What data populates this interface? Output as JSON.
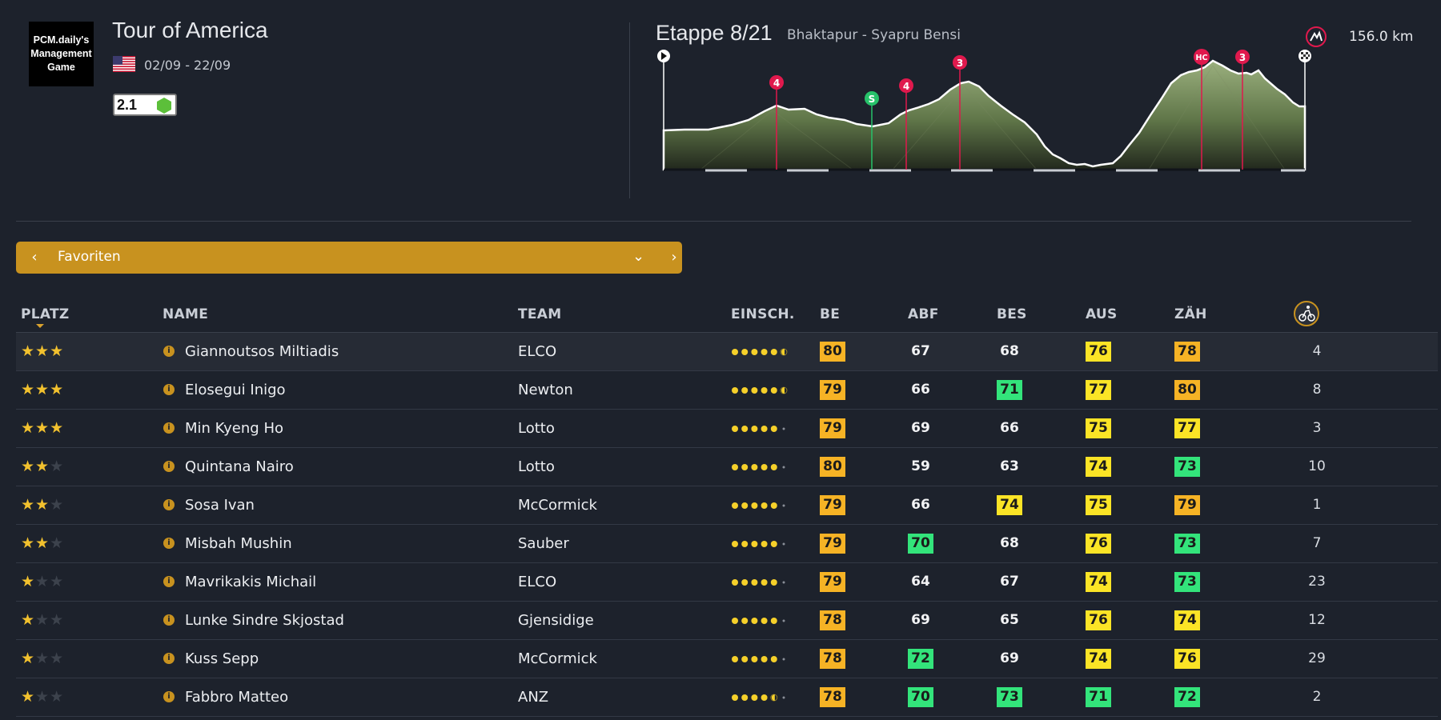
{
  "logo": {
    "lines": [
      "PCM.daily's",
      "Management",
      "Game"
    ]
  },
  "race": {
    "title": "Tour of America",
    "dates": "02/09 - 22/09",
    "category": "2.1",
    "category_color": "#5cbf3a",
    "flag": "us-flag-icon"
  },
  "stage": {
    "title": "Etappe 8/21",
    "route": "Bhaktapur - Syapru Bensi",
    "distance": "156.0 km",
    "markers": [
      {
        "label": "4",
        "kind": "climb",
        "color": "#e0194d"
      },
      {
        "label": "S",
        "kind": "sprint",
        "color": "#27c26a"
      },
      {
        "label": "4",
        "kind": "climb",
        "color": "#e0194d"
      },
      {
        "label": "3",
        "kind": "climb",
        "color": "#e0194d"
      },
      {
        "label": "HC",
        "kind": "climb",
        "color": "#e0194d"
      },
      {
        "label": "3",
        "kind": "climb",
        "color": "#e0194d"
      }
    ]
  },
  "selector": {
    "label": "Favoriten"
  },
  "columns": {
    "platz": "PLATZ",
    "name": "NAME",
    "team": "TEAM",
    "einsch": "EINSCH.",
    "be": "BE",
    "abf": "ABF",
    "bes": "BES",
    "aus": "AUS",
    "zah": "ZÄH"
  },
  "colors": {
    "orange": "#f6b325",
    "yellow": "#fbe426",
    "green": "#33e47b",
    "accent": "#c8921f"
  },
  "riders": [
    {
      "stars": 3,
      "name": "Giannoutsos Miltiadis",
      "team": "ELCO",
      "form": "●●●●●◖",
      "be": "80",
      "be_c": "orange",
      "abf": "67",
      "abf_c": "none",
      "bes": "68",
      "bes_c": "none",
      "aus": "76",
      "aus_c": "yellow",
      "zah": "78",
      "zah_c": "orange",
      "num": "4"
    },
    {
      "stars": 3,
      "name": "Elosegui Inigo",
      "team": "Newton",
      "form": "●●●●●◖",
      "be": "79",
      "be_c": "orange",
      "abf": "66",
      "abf_c": "none",
      "bes": "71",
      "bes_c": "green",
      "aus": "77",
      "aus_c": "yellow",
      "zah": "80",
      "zah_c": "orange",
      "num": "8"
    },
    {
      "stars": 3,
      "name": "Min Kyeng Ho",
      "team": "Lotto",
      "form": "●●●●●·",
      "be": "79",
      "be_c": "orange",
      "abf": "69",
      "abf_c": "none",
      "bes": "66",
      "bes_c": "none",
      "aus": "75",
      "aus_c": "yellow",
      "zah": "77",
      "zah_c": "yellow",
      "num": "3"
    },
    {
      "stars": 2,
      "name": "Quintana Nairo",
      "team": "Lotto",
      "form": "●●●●●·",
      "be": "80",
      "be_c": "orange",
      "abf": "59",
      "abf_c": "none",
      "bes": "63",
      "bes_c": "none",
      "aus": "74",
      "aus_c": "yellow",
      "zah": "73",
      "zah_c": "green",
      "num": "10"
    },
    {
      "stars": 2,
      "name": "Sosa Ivan",
      "team": "McCormick",
      "form": "●●●●●·",
      "be": "79",
      "be_c": "orange",
      "abf": "66",
      "abf_c": "none",
      "bes": "74",
      "bes_c": "yellow",
      "aus": "75",
      "aus_c": "yellow",
      "zah": "79",
      "zah_c": "orange",
      "num": "1"
    },
    {
      "stars": 2,
      "name": "Misbah Mushin",
      "team": "Sauber",
      "form": "●●●●●·",
      "be": "79",
      "be_c": "orange",
      "abf": "70",
      "abf_c": "green",
      "bes": "68",
      "bes_c": "none",
      "aus": "76",
      "aus_c": "yellow",
      "zah": "73",
      "zah_c": "green",
      "num": "7"
    },
    {
      "stars": 1,
      "name": "Mavrikakis Michail",
      "team": "ELCO",
      "form": "●●●●●·",
      "be": "79",
      "be_c": "orange",
      "abf": "64",
      "abf_c": "none",
      "bes": "67",
      "bes_c": "none",
      "aus": "74",
      "aus_c": "yellow",
      "zah": "73",
      "zah_c": "green",
      "num": "23"
    },
    {
      "stars": 1,
      "name": "Lunke Sindre Skjostad",
      "team": "Gjensidige",
      "form": "●●●●●·",
      "be": "78",
      "be_c": "orange",
      "abf": "69",
      "abf_c": "none",
      "bes": "65",
      "bes_c": "none",
      "aus": "76",
      "aus_c": "yellow",
      "zah": "74",
      "zah_c": "yellow",
      "num": "12"
    },
    {
      "stars": 1,
      "name": "Kuss Sepp",
      "team": "McCormick",
      "form": "●●●●●·",
      "be": "78",
      "be_c": "orange",
      "abf": "72",
      "abf_c": "green",
      "bes": "69",
      "bes_c": "none",
      "aus": "74",
      "aus_c": "yellow",
      "zah": "76",
      "zah_c": "yellow",
      "num": "29"
    },
    {
      "stars": 1,
      "name": "Fabbro Matteo",
      "team": "ANZ",
      "form": "●●●●◖·",
      "be": "78",
      "be_c": "orange",
      "abf": "70",
      "abf_c": "green",
      "bes": "73",
      "bes_c": "green",
      "aus": "71",
      "aus_c": "green",
      "zah": "72",
      "zah_c": "green",
      "num": "2"
    }
  ]
}
